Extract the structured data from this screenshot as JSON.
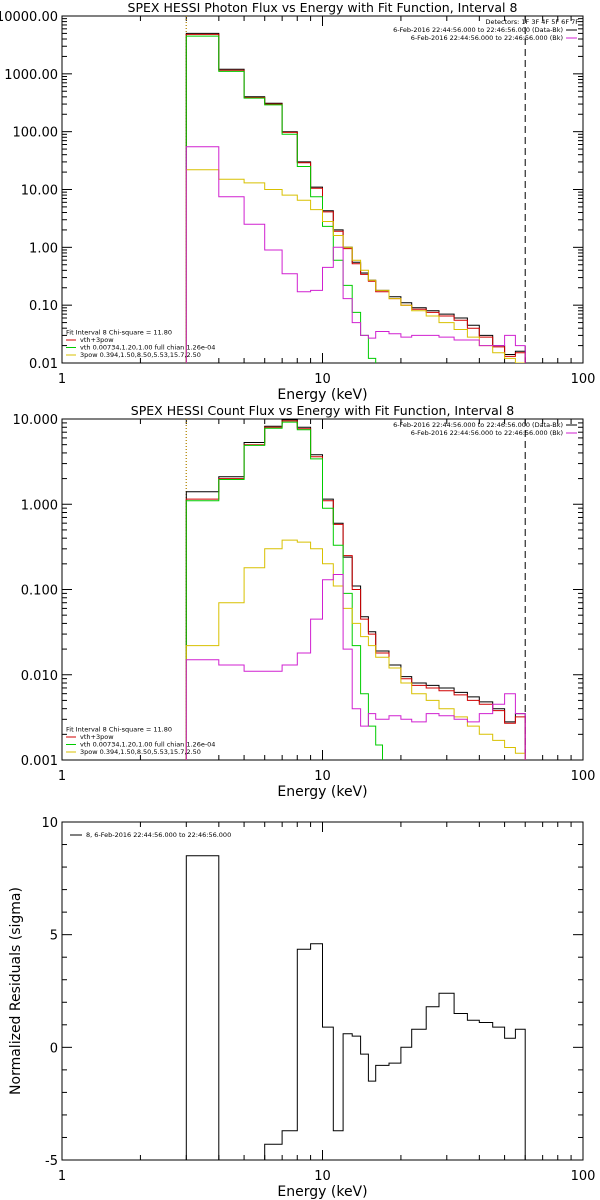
{
  "chart_data": [
    {
      "type": "line",
      "title": "SPEX HESSI Photon Flux vs Energy with Fit Function, Interval 8",
      "xlabel": "Energy (keV)",
      "ylabel": "",
      "xscale": "log",
      "yscale": "log",
      "xlim": [
        1,
        100
      ],
      "ylim": [
        0.01,
        10000
      ],
      "xticks": [
        {
          "v": 1,
          "label": "1"
        },
        {
          "v": 10,
          "label": "10"
        },
        {
          "v": 100,
          "label": "100"
        }
      ],
      "yticks": [
        {
          "v": 0.01,
          "label": "0.01"
        },
        {
          "v": 0.1,
          "label": "0.10"
        },
        {
          "v": 1,
          "label": "1.00"
        },
        {
          "v": 10,
          "label": "10.00"
        },
        {
          "v": 100,
          "label": "100.00"
        },
        {
          "v": 1000,
          "label": "1000.00"
        },
        {
          "v": 10000,
          "label": "10000.00"
        }
      ],
      "vlines": [
        {
          "x": 3,
          "style": "dotted",
          "color": "#000000"
        },
        {
          "x": 3,
          "style": "dotted",
          "color": "#d8a000"
        },
        {
          "x": 60,
          "style": "dashed",
          "color": "#000000"
        }
      ],
      "legend_top": {
        "placement": "top-right",
        "header": "Detectors: 1F 3F 4F 5F 6F 7F",
        "lines": [
          {
            "text": "6-Feb-2016 22:44:56.000 to 22:46:56.000 (Data-Bk)",
            "color": "#000000"
          },
          {
            "text": "6-Feb-2016 22:44:56.000 to 22:46:56.000 (Bk)",
            "color": "#d020d0"
          }
        ]
      },
      "legend_bottom": {
        "placement": "bottom-left",
        "header": "Fit Interval 8   Chi-square = 11.80",
        "lines": [
          {
            "text": "vth+3pow",
            "color": "#d00000"
          },
          {
            "text": "vth 0.00734,1.20,1.00  full chian 1.26e-04",
            "color": "#00cc00"
          },
          {
            "text": "3pow 0.394,1.50,8.50,5.53,15.7,2.50",
            "color": "#d8c000"
          }
        ]
      },
      "series": [
        {
          "color": "#000000",
          "edges": [
            3,
            4,
            5,
            6,
            7,
            8,
            9,
            10,
            11,
            12,
            13,
            14,
            15,
            16,
            18,
            20,
            22,
            25,
            28,
            32,
            36,
            40,
            45,
            50,
            55,
            60
          ],
          "values": [
            5000,
            1200,
            400,
            310,
            100,
            30,
            11,
            4.3,
            2.0,
            1.0,
            0.55,
            0.36,
            0.27,
            0.18,
            0.14,
            0.11,
            0.09,
            0.08,
            0.07,
            0.06,
            0.045,
            0.03,
            0.02,
            0.014,
            0.016
          ]
        },
        {
          "color": "#d00000",
          "edges": [
            3,
            4,
            5,
            6,
            7,
            8,
            9,
            10,
            11,
            12,
            13,
            14,
            15,
            16,
            18,
            20,
            22,
            25,
            28,
            32,
            36,
            40,
            45,
            50,
            55,
            60
          ],
          "values": [
            4800,
            1150,
            390,
            300,
            97,
            29,
            10.5,
            4.1,
            1.9,
            0.95,
            0.52,
            0.34,
            0.26,
            0.17,
            0.13,
            0.1,
            0.085,
            0.075,
            0.065,
            0.055,
            0.04,
            0.028,
            0.019,
            0.013,
            0.015
          ]
        },
        {
          "color": "#00cc00",
          "edges": [
            3,
            4,
            5,
            6,
            7,
            8,
            9,
            10,
            11,
            12,
            13,
            14,
            15,
            16
          ],
          "values": [
            4500,
            1100,
            380,
            290,
            90,
            25,
            7.5,
            2.3,
            0.6,
            0.22,
            0.075,
            0.03,
            0.012
          ]
        },
        {
          "color": "#d8c000",
          "edges": [
            3,
            4,
            5,
            6,
            7,
            8,
            9,
            10,
            11,
            12,
            13,
            14,
            15,
            16,
            18,
            20,
            22,
            25,
            28,
            32,
            36,
            40,
            45,
            50,
            55,
            60
          ],
          "values": [
            22,
            15,
            13,
            10,
            8,
            6.5,
            4.5,
            2.8,
            1.6,
            1.0,
            0.6,
            0.4,
            0.27,
            0.18,
            0.13,
            0.1,
            0.08,
            0.065,
            0.05,
            0.038,
            0.028,
            0.02,
            0.015,
            0.012,
            0.01
          ]
        },
        {
          "color": "#d020d0",
          "edges": [
            3,
            4,
            5,
            6,
            7,
            8,
            9,
            10,
            11,
            12,
            13,
            14,
            15,
            16,
            18,
            20,
            22,
            25,
            28,
            32,
            36,
            40,
            45,
            50,
            55,
            60
          ],
          "values": [
            55,
            7.5,
            2.5,
            0.9,
            0.35,
            0.17,
            0.18,
            0.45,
            1.0,
            0.13,
            0.05,
            0.03,
            0.027,
            0.035,
            0.032,
            0.028,
            0.03,
            0.03,
            0.028,
            0.025,
            0.025,
            0.02,
            0.02,
            0.03,
            0.02
          ]
        }
      ]
    },
    {
      "type": "line",
      "title": "SPEX HESSI Count Flux vs Energy with Fit Function, Interval 8",
      "xlabel": "Energy (keV)",
      "ylabel": "",
      "xscale": "log",
      "yscale": "log",
      "xlim": [
        1,
        100
      ],
      "ylim": [
        0.001,
        10
      ],
      "xticks": [
        {
          "v": 1,
          "label": "1"
        },
        {
          "v": 10,
          "label": "10"
        },
        {
          "v": 100,
          "label": "100"
        }
      ],
      "yticks": [
        {
          "v": 0.001,
          "label": "0.001"
        },
        {
          "v": 0.01,
          "label": "0.010"
        },
        {
          "v": 0.1,
          "label": "0.100"
        },
        {
          "v": 1,
          "label": "1.000"
        },
        {
          "v": 10,
          "label": "10.000"
        }
      ],
      "vlines": [
        {
          "x": 3,
          "style": "dotted",
          "color": "#000000"
        },
        {
          "x": 3,
          "style": "dotted",
          "color": "#d8a000"
        },
        {
          "x": 60,
          "style": "dashed",
          "color": "#000000"
        }
      ],
      "legend_top": {
        "placement": "top-right",
        "header": "",
        "lines": [
          {
            "text": "6-Feb-2016 22:44:56.000 to 22:46:56.000 (Data-Bk)",
            "color": "#000000"
          },
          {
            "text": "6-Feb-2016 22:44:56.000 to 22:46:56.000 (Bk)",
            "color": "#d020d0"
          }
        ]
      },
      "legend_bottom": {
        "placement": "bottom-left",
        "header": "Fit Interval 8   Chi-square = 11.80",
        "lines": [
          {
            "text": "vth+3pow",
            "color": "#d00000"
          },
          {
            "text": "vth 0.00734,1.20,1.00  full chian 1.26e-04",
            "color": "#00cc00"
          },
          {
            "text": "3pow 0.394,1.50,8.50,5.53,15.7,2.50",
            "color": "#d8c000"
          }
        ]
      },
      "series": [
        {
          "color": "#000000",
          "edges": [
            3,
            4,
            5,
            6,
            7,
            8,
            9,
            10,
            11,
            12,
            13,
            14,
            15,
            16,
            18,
            20,
            22,
            25,
            28,
            32,
            36,
            40,
            45,
            50,
            55,
            60
          ],
          "values": [
            1.4,
            2.1,
            5.3,
            8.2,
            9.8,
            8.0,
            3.8,
            1.15,
            0.6,
            0.24,
            0.11,
            0.048,
            0.032,
            0.019,
            0.013,
            0.0095,
            0.008,
            0.0075,
            0.007,
            0.0062,
            0.0055,
            0.0048,
            0.004,
            0.0028,
            0.0035
          ]
        },
        {
          "color": "#d00000",
          "edges": [
            3,
            4,
            5,
            6,
            7,
            8,
            9,
            10,
            11,
            12,
            13,
            14,
            15,
            16,
            18,
            20,
            22,
            25,
            28,
            32,
            36,
            40,
            45,
            50,
            55,
            60
          ],
          "values": [
            1.15,
            2.0,
            5.0,
            8.0,
            9.5,
            7.7,
            3.6,
            1.1,
            0.58,
            0.25,
            0.1,
            0.045,
            0.03,
            0.018,
            0.012,
            0.009,
            0.0075,
            0.007,
            0.0065,
            0.0058,
            0.005,
            0.0045,
            0.0038,
            0.0027,
            0.0032
          ]
        },
        {
          "color": "#00cc00",
          "edges": [
            3,
            4,
            5,
            6,
            7,
            8,
            9,
            10,
            11,
            12,
            13,
            14,
            15,
            16,
            17
          ],
          "values": [
            1.1,
            1.95,
            4.9,
            7.8,
            9.2,
            7.5,
            3.4,
            0.9,
            0.33,
            0.09,
            0.022,
            0.006,
            0.0025,
            0.0015
          ]
        },
        {
          "color": "#d8c000",
          "edges": [
            3,
            4,
            5,
            6,
            7,
            8,
            9,
            10,
            11,
            12,
            13,
            14,
            15,
            16,
            18,
            20,
            22,
            25,
            28,
            32,
            36,
            40,
            45,
            50,
            55,
            60,
            70
          ],
          "values": [
            0.022,
            0.07,
            0.18,
            0.3,
            0.38,
            0.36,
            0.3,
            0.2,
            0.11,
            0.06,
            0.04,
            0.028,
            0.022,
            0.016,
            0.012,
            0.008,
            0.006,
            0.005,
            0.004,
            0.0032,
            0.0025,
            0.002,
            0.0017,
            0.0014,
            0.0012,
            0.0009
          ]
        },
        {
          "color": "#d020d0",
          "edges": [
            3,
            4,
            5,
            6,
            7,
            8,
            9,
            10,
            11,
            12,
            13,
            14,
            15,
            16,
            18,
            20,
            22,
            25,
            28,
            32,
            36,
            40,
            45,
            50,
            55,
            60
          ],
          "values": [
            0.015,
            0.013,
            0.011,
            0.011,
            0.013,
            0.018,
            0.045,
            0.13,
            0.15,
            0.02,
            0.004,
            0.0025,
            0.0035,
            0.003,
            0.0033,
            0.003,
            0.0028,
            0.0035,
            0.0033,
            0.003,
            0.0028,
            0.0035,
            0.0045,
            0.006,
            0.0035
          ]
        }
      ]
    },
    {
      "type": "line",
      "title": "",
      "xlabel": "Energy (keV)",
      "ylabel": "Normalized Residuals (sigma)",
      "xscale": "log",
      "yscale": "linear",
      "xlim": [
        1,
        100
      ],
      "ylim": [
        -5,
        10
      ],
      "xticks": [
        {
          "v": 1,
          "label": "1"
        },
        {
          "v": 10,
          "label": "10"
        },
        {
          "v": 100,
          "label": "100"
        }
      ],
      "yticks": [
        {
          "v": -5,
          "label": "-5"
        },
        {
          "v": 0,
          "label": "0"
        },
        {
          "v": 5,
          "label": "5"
        },
        {
          "v": 10,
          "label": "10"
        }
      ],
      "vlines": [],
      "legend_top": {
        "placement": "top-left",
        "header": "",
        "lines": [
          {
            "text": "8,  6-Feb-2016 22:44:56.000 to 22:46:56.000",
            "color": "#000000"
          }
        ]
      },
      "legend_bottom": {
        "placement": "bottom-left",
        "header": "",
        "lines": []
      },
      "series": [
        {
          "color": "#000000",
          "edges": [
            3,
            4,
            5,
            6,
            7,
            8,
            9,
            10,
            11,
            12,
            13,
            14,
            15,
            16,
            18,
            20,
            22,
            25,
            28,
            32,
            36,
            40,
            45,
            50,
            55,
            60
          ],
          "values": [
            8.5,
            -5.0,
            -5.1,
            -4.3,
            -3.7,
            4.35,
            4.6,
            0.9,
            -3.7,
            0.6,
            0.5,
            -0.3,
            -1.5,
            -0.8,
            -0.7,
            0.0,
            0.8,
            1.8,
            2.4,
            1.5,
            1.2,
            1.1,
            0.9,
            0.4,
            0.8
          ]
        }
      ]
    }
  ]
}
